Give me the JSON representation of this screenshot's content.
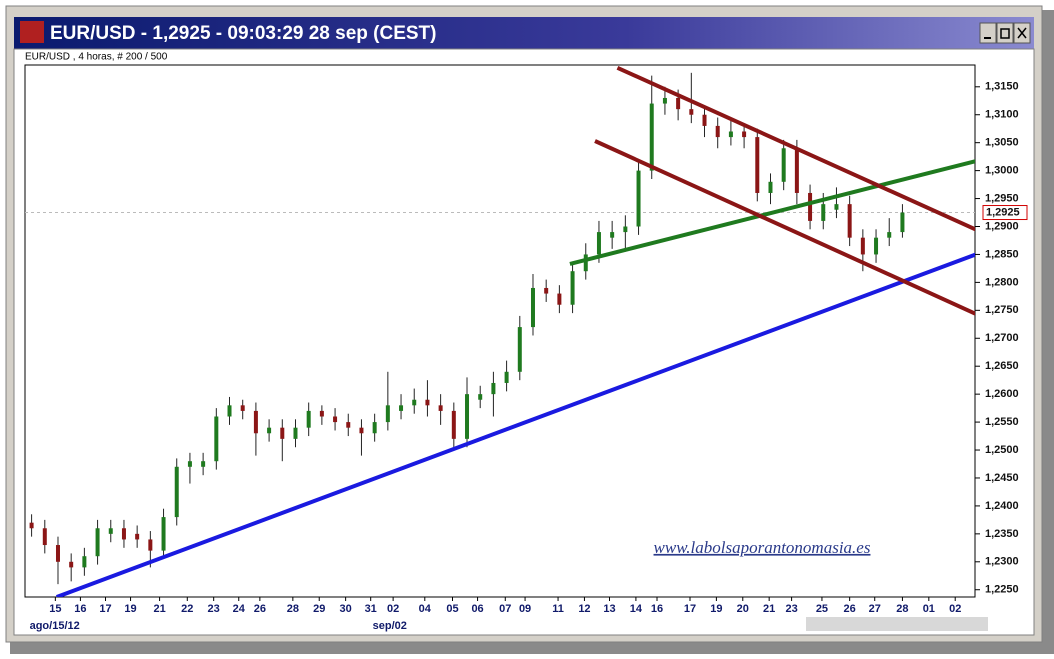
{
  "chart_data": {
    "type": "candlestick",
    "title": "EUR/USD - 1,2925 - 09:03:29  28 sep (CEST)",
    "subtitle": "EUR/USD , 4 horas, # 200 / 500",
    "watermark": "www.labolsaporantonomasia.es",
    "last_price": 1.2925,
    "last_price_label": "1,2925",
    "up_color": "#1f7a1f",
    "down_color": "#8b1616",
    "grid": false,
    "xlim": [
      -0.5,
      71.5
    ],
    "ylim": [
      1.2237,
      1.3189
    ],
    "yticks": [
      {
        "value": 1.225,
        "label": "1,2250"
      },
      {
        "value": 1.23,
        "label": "1,2300"
      },
      {
        "value": 1.235,
        "label": "1,2350"
      },
      {
        "value": 1.24,
        "label": "1,2400"
      },
      {
        "value": 1.245,
        "label": "1,2450"
      },
      {
        "value": 1.25,
        "label": "1,2500"
      },
      {
        "value": 1.255,
        "label": "1,2550"
      },
      {
        "value": 1.26,
        "label": "1,2600"
      },
      {
        "value": 1.265,
        "label": "1,2650"
      },
      {
        "value": 1.27,
        "label": "1,2700"
      },
      {
        "value": 1.275,
        "label": "1,2750"
      },
      {
        "value": 1.28,
        "label": "1,2800"
      },
      {
        "value": 1.285,
        "label": "1,2850"
      },
      {
        "value": 1.29,
        "label": "1,2900"
      },
      {
        "value": 1.295,
        "label": "1,2950"
      },
      {
        "value": 1.3,
        "label": "1,3000"
      },
      {
        "value": 1.305,
        "label": "1,3050"
      },
      {
        "value": 1.31,
        "label": "1,3100"
      },
      {
        "value": 1.315,
        "label": "1,3150"
      }
    ],
    "xticks": [
      {
        "value": 1.8,
        "label": "15"
      },
      {
        "value": 3.7,
        "label": "16"
      },
      {
        "value": 5.6,
        "label": "17"
      },
      {
        "value": 7.5,
        "label": "19"
      },
      {
        "value": 9.7,
        "label": "21"
      },
      {
        "value": 11.8,
        "label": "22"
      },
      {
        "value": 13.8,
        "label": "23"
      },
      {
        "value": 15.7,
        "label": "24"
      },
      {
        "value": 17.3,
        "label": "26"
      },
      {
        "value": 19.8,
        "label": "28"
      },
      {
        "value": 21.8,
        "label": "29"
      },
      {
        "value": 23.8,
        "label": "30"
      },
      {
        "value": 25.7,
        "label": "31"
      },
      {
        "value": 27.4,
        "label": "02"
      },
      {
        "value": 29.8,
        "label": "04"
      },
      {
        "value": 31.9,
        "label": "05"
      },
      {
        "value": 33.8,
        "label": "06"
      },
      {
        "value": 35.9,
        "label": "07"
      },
      {
        "value": 37.4,
        "label": "09"
      },
      {
        "value": 39.9,
        "label": "11"
      },
      {
        "value": 41.9,
        "label": "12"
      },
      {
        "value": 43.8,
        "label": "13"
      },
      {
        "value": 45.8,
        "label": "14"
      },
      {
        "value": 47.4,
        "label": "16"
      },
      {
        "value": 49.9,
        "label": "17"
      },
      {
        "value": 51.9,
        "label": "19"
      },
      {
        "value": 53.9,
        "label": "20"
      },
      {
        "value": 55.9,
        "label": "21"
      },
      {
        "value": 57.6,
        "label": "23"
      },
      {
        "value": 59.9,
        "label": "25"
      },
      {
        "value": 62.0,
        "label": "26"
      },
      {
        "value": 63.9,
        "label": "27"
      },
      {
        "value": 66.0,
        "label": "28"
      },
      {
        "value": 68.0,
        "label": "01"
      },
      {
        "value": 70.0,
        "label": "02"
      }
    ],
    "x_period_labels": [
      {
        "value": 0.0,
        "label": "ago/15/12"
      },
      {
        "value": 26.0,
        "label": "sep/02"
      }
    ],
    "x": [
      0,
      1,
      2,
      3,
      4,
      5,
      6,
      7,
      8,
      9,
      10,
      11,
      12,
      13,
      14,
      15,
      16,
      17,
      18,
      19,
      20,
      21,
      22,
      23,
      24,
      25,
      26,
      27,
      28,
      29,
      30,
      31,
      32,
      33,
      34,
      35,
      36,
      37,
      38,
      39,
      40,
      41,
      42,
      43,
      44,
      45,
      46,
      47,
      48,
      49,
      50,
      51,
      52,
      53,
      54,
      55,
      56,
      57,
      58,
      59,
      60,
      61,
      62,
      63,
      64,
      65,
      66
    ],
    "open": [
      1.237,
      1.236,
      1.233,
      1.23,
      1.229,
      1.231,
      1.235,
      1.236,
      1.235,
      1.234,
      1.232,
      1.238,
      1.247,
      1.247,
      1.248,
      1.256,
      1.258,
      1.257,
      1.253,
      1.254,
      1.252,
      1.254,
      1.257,
      1.256,
      1.255,
      1.254,
      1.253,
      1.255,
      1.257,
      1.258,
      1.259,
      1.258,
      1.257,
      1.252,
      1.259,
      1.26,
      1.262,
      1.264,
      1.272,
      1.279,
      1.278,
      1.276,
      1.282,
      1.285,
      1.288,
      1.289,
      1.29,
      1.3,
      1.312,
      1.313,
      1.311,
      1.31,
      1.308,
      1.306,
      1.307,
      1.306,
      1.296,
      1.298,
      1.304,
      1.296,
      1.291,
      1.293,
      1.294,
      1.288,
      1.285,
      1.288,
      1.289
    ],
    "high": [
      1.2385,
      1.2375,
      1.2345,
      1.2315,
      1.2325,
      1.2375,
      1.2375,
      1.2375,
      1.2365,
      1.2355,
      1.2395,
      1.2485,
      1.2495,
      1.2495,
      1.2575,
      1.2595,
      1.259,
      1.2585,
      1.2555,
      1.2555,
      1.2555,
      1.2585,
      1.258,
      1.2575,
      1.2565,
      1.2555,
      1.2565,
      1.264,
      1.26,
      1.261,
      1.2625,
      1.26,
      1.2585,
      1.263,
      1.2615,
      1.264,
      1.266,
      1.274,
      1.2815,
      1.2805,
      1.2795,
      1.2835,
      1.287,
      1.291,
      1.291,
      1.292,
      1.3015,
      1.317,
      1.315,
      1.3145,
      1.3175,
      1.3115,
      1.3095,
      1.309,
      1.3085,
      1.3075,
      1.2995,
      1.3055,
      1.3055,
      1.2975,
      1.296,
      1.297,
      1.2955,
      1.2895,
      1.2895,
      1.2915,
      1.294
    ],
    "low": [
      1.2345,
      1.2315,
      1.226,
      1.2265,
      1.2275,
      1.2295,
      1.2335,
      1.2325,
      1.2325,
      1.229,
      1.2305,
      1.2365,
      1.244,
      1.2455,
      1.2465,
      1.2545,
      1.2555,
      1.249,
      1.2515,
      1.248,
      1.2505,
      1.2525,
      1.2545,
      1.2535,
      1.2525,
      1.249,
      1.2515,
      1.2535,
      1.2555,
      1.2565,
      1.256,
      1.2545,
      1.2505,
      1.2505,
      1.2575,
      1.256,
      1.2605,
      1.2625,
      1.2705,
      1.2765,
      1.2745,
      1.2745,
      1.2805,
      1.2835,
      1.286,
      1.2855,
      1.2885,
      1.2985,
      1.31,
      1.309,
      1.3085,
      1.306,
      1.304,
      1.3045,
      1.304,
      1.2945,
      1.294,
      1.2965,
      1.294,
      1.2895,
      1.2895,
      1.2915,
      1.2865,
      1.282,
      1.2835,
      1.2865,
      1.288
    ],
    "close": [
      1.236,
      1.233,
      1.23,
      1.229,
      1.231,
      1.236,
      1.236,
      1.234,
      1.234,
      1.232,
      1.238,
      1.247,
      1.248,
      1.248,
      1.256,
      1.258,
      1.257,
      1.253,
      1.254,
      1.252,
      1.254,
      1.257,
      1.256,
      1.255,
      1.254,
      1.253,
      1.255,
      1.258,
      1.258,
      1.259,
      1.258,
      1.257,
      1.252,
      1.26,
      1.26,
      1.262,
      1.264,
      1.272,
      1.279,
      1.278,
      1.276,
      1.282,
      1.285,
      1.289,
      1.289,
      1.29,
      1.3,
      1.312,
      1.313,
      1.311,
      1.31,
      1.308,
      1.306,
      1.307,
      1.306,
      1.296,
      1.298,
      1.304,
      1.296,
      1.291,
      1.294,
      1.294,
      1.288,
      1.285,
      1.288,
      1.289,
      1.2925
    ],
    "trendlines": [
      {
        "color": "#1a1ae0",
        "x": [
          1.9,
          71.9
        ],
        "values": [
          1.2237,
          1.2853
        ]
      },
      {
        "color": "#1f7a1f",
        "x": [
          40.8,
          71.9
        ],
        "values": [
          1.2833,
          1.3019
        ]
      },
      {
        "color": "#8b1616",
        "x": [
          44.4,
          71.9
        ],
        "values": [
          1.3184,
          1.2891
        ]
      },
      {
        "color": "#8b1616",
        "x": [
          42.7,
          71.9
        ],
        "values": [
          1.3053,
          1.274
        ]
      }
    ]
  }
}
